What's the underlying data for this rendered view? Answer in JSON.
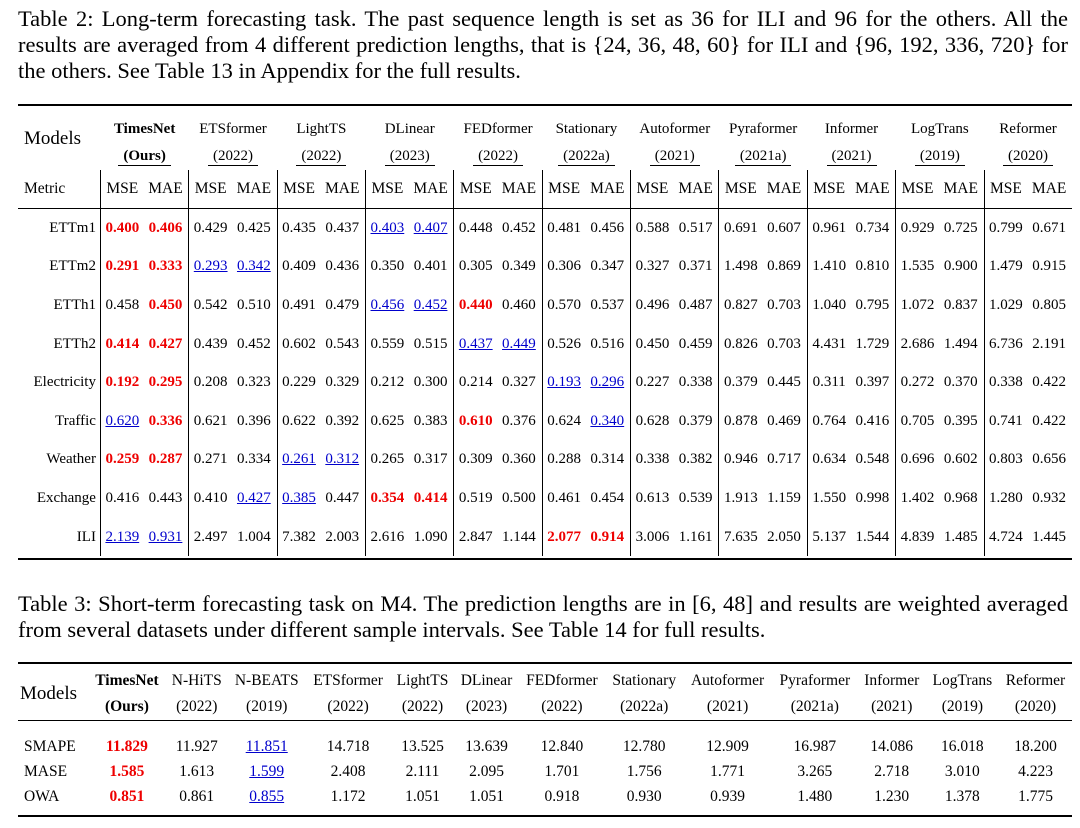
{
  "table2": {
    "caption": "Table 2: Long-term forecasting task. The past sequence length is set as 36 for ILI and 96 for the others. All the results are averaged from 4 different prediction lengths, that is {24, 36, 48, 60} for ILI and {96, 192, 336, 720} for the others. See Table 13 in Appendix for the full results.",
    "models_label": "Models",
    "metric_label": "Metric",
    "metric_pair": [
      "MSE",
      "MAE"
    ],
    "models": [
      {
        "name": "TimesNet",
        "year": "(Ours)"
      },
      {
        "name": "ETSformer",
        "year": "(2022)"
      },
      {
        "name": "LightTS",
        "year": "(2022)"
      },
      {
        "name": "DLinear",
        "year": "(2023)"
      },
      {
        "name": "FEDformer",
        "year": "(2022)"
      },
      {
        "name": "Stationary",
        "year": "(2022a)"
      },
      {
        "name": "Autoformer",
        "year": "(2021)"
      },
      {
        "name": "Pyraformer",
        "year": "(2021a)"
      },
      {
        "name": "Informer",
        "year": "(2021)"
      },
      {
        "name": "LogTrans",
        "year": "(2019)"
      },
      {
        "name": "Reformer",
        "year": "(2020)"
      }
    ],
    "rows": [
      {
        "dataset": "ETTm1",
        "values": [
          "0.400",
          "0.406",
          "0.429",
          "0.425",
          "0.435",
          "0.437",
          "0.403",
          "0.407",
          "0.448",
          "0.452",
          "0.481",
          "0.456",
          "0.588",
          "0.517",
          "0.691",
          "0.607",
          "0.961",
          "0.734",
          "0.929",
          "0.725",
          "0.799",
          "0.671"
        ],
        "best": [
          0,
          1
        ],
        "second": [
          6,
          7
        ]
      },
      {
        "dataset": "ETTm2",
        "values": [
          "0.291",
          "0.333",
          "0.293",
          "0.342",
          "0.409",
          "0.436",
          "0.350",
          "0.401",
          "0.305",
          "0.349",
          "0.306",
          "0.347",
          "0.327",
          "0.371",
          "1.498",
          "0.869",
          "1.410",
          "0.810",
          "1.535",
          "0.900",
          "1.479",
          "0.915"
        ],
        "best": [
          0,
          1
        ],
        "second": [
          2,
          3
        ]
      },
      {
        "dataset": "ETTh1",
        "values": [
          "0.458",
          "0.450",
          "0.542",
          "0.510",
          "0.491",
          "0.479",
          "0.456",
          "0.452",
          "0.440",
          "0.460",
          "0.570",
          "0.537",
          "0.496",
          "0.487",
          "0.827",
          "0.703",
          "1.040",
          "0.795",
          "1.072",
          "0.837",
          "1.029",
          "0.805"
        ],
        "best": [
          1,
          8
        ],
        "second": [
          6,
          7
        ]
      },
      {
        "dataset": "ETTh2",
        "values": [
          "0.414",
          "0.427",
          "0.439",
          "0.452",
          "0.602",
          "0.543",
          "0.559",
          "0.515",
          "0.437",
          "0.449",
          "0.526",
          "0.516",
          "0.450",
          "0.459",
          "0.826",
          "0.703",
          "4.431",
          "1.729",
          "2.686",
          "1.494",
          "6.736",
          "2.191"
        ],
        "best": [
          0,
          1
        ],
        "second": [
          8,
          9
        ]
      },
      {
        "dataset": "Electricity",
        "values": [
          "0.192",
          "0.295",
          "0.208",
          "0.323",
          "0.229",
          "0.329",
          "0.212",
          "0.300",
          "0.214",
          "0.327",
          "0.193",
          "0.296",
          "0.227",
          "0.338",
          "0.379",
          "0.445",
          "0.311",
          "0.397",
          "0.272",
          "0.370",
          "0.338",
          "0.422"
        ],
        "best": [
          0,
          1
        ],
        "second": [
          10,
          11
        ]
      },
      {
        "dataset": "Traffic",
        "values": [
          "0.620",
          "0.336",
          "0.621",
          "0.396",
          "0.622",
          "0.392",
          "0.625",
          "0.383",
          "0.610",
          "0.376",
          "0.624",
          "0.340",
          "0.628",
          "0.379",
          "0.878",
          "0.469",
          "0.764",
          "0.416",
          "0.705",
          "0.395",
          "0.741",
          "0.422"
        ],
        "best": [
          1,
          8
        ],
        "second": [
          0,
          11
        ]
      },
      {
        "dataset": "Weather",
        "values": [
          "0.259",
          "0.287",
          "0.271",
          "0.334",
          "0.261",
          "0.312",
          "0.265",
          "0.317",
          "0.309",
          "0.360",
          "0.288",
          "0.314",
          "0.338",
          "0.382",
          "0.946",
          "0.717",
          "0.634",
          "0.548",
          "0.696",
          "0.602",
          "0.803",
          "0.656"
        ],
        "best": [
          0,
          1
        ],
        "second": [
          4,
          5
        ]
      },
      {
        "dataset": "Exchange",
        "values": [
          "0.416",
          "0.443",
          "0.410",
          "0.427",
          "0.385",
          "0.447",
          "0.354",
          "0.414",
          "0.519",
          "0.500",
          "0.461",
          "0.454",
          "0.613",
          "0.539",
          "1.913",
          "1.159",
          "1.550",
          "0.998",
          "1.402",
          "0.968",
          "1.280",
          "0.932"
        ],
        "best": [
          6,
          7
        ],
        "second": [
          3,
          4
        ]
      },
      {
        "dataset": "ILI",
        "values": [
          "2.139",
          "0.931",
          "2.497",
          "1.004",
          "7.382",
          "2.003",
          "2.616",
          "1.090",
          "2.847",
          "1.144",
          "2.077",
          "0.914",
          "3.006",
          "1.161",
          "7.635",
          "2.050",
          "5.137",
          "1.544",
          "4.839",
          "1.485",
          "4.724",
          "1.445"
        ],
        "best": [
          10,
          11
        ],
        "second": [
          0,
          1
        ]
      }
    ]
  },
  "table3": {
    "caption": "Table 3: Short-term forecasting task on M4. The prediction lengths are in [6, 48] and results are weighted averaged from several datasets under different sample intervals. See Table 14 for full results.",
    "models_label": "Models",
    "models": [
      {
        "name": "TimesNet",
        "year": "(Ours)"
      },
      {
        "name": "N-HiTS",
        "year": "(2022)"
      },
      {
        "name": "N-BEATS",
        "year": "(2019)"
      },
      {
        "name": "ETSformer",
        "year": "(2022)"
      },
      {
        "name": "LightTS",
        "year": "(2022)"
      },
      {
        "name": "DLinear",
        "year": "(2023)"
      },
      {
        "name": "FEDformer",
        "year": "(2022)"
      },
      {
        "name": "Stationary",
        "year": "(2022a)"
      },
      {
        "name": "Autoformer",
        "year": "(2021)"
      },
      {
        "name": "Pyraformer",
        "year": "(2021a)"
      },
      {
        "name": "Informer",
        "year": "(2021)"
      },
      {
        "name": "LogTrans",
        "year": "(2019)"
      },
      {
        "name": "Reformer",
        "year": "(2020)"
      }
    ],
    "rows": [
      {
        "metric": "SMAPE",
        "values": [
          "11.829",
          "11.927",
          "11.851",
          "14.718",
          "13.525",
          "13.639",
          "12.840",
          "12.780",
          "12.909",
          "16.987",
          "14.086",
          "16.018",
          "18.200"
        ],
        "best": [
          0
        ],
        "second": [
          2
        ]
      },
      {
        "metric": "MASE",
        "values": [
          "1.585",
          "1.613",
          "1.599",
          "2.408",
          "2.111",
          "2.095",
          "1.701",
          "1.756",
          "1.771",
          "3.265",
          "2.718",
          "3.010",
          "4.223"
        ],
        "best": [
          0
        ],
        "second": [
          2
        ]
      },
      {
        "metric": "OWA",
        "values": [
          "0.851",
          "0.861",
          "0.855",
          "1.172",
          "1.051",
          "1.051",
          "0.918",
          "0.930",
          "0.939",
          "1.480",
          "1.230",
          "1.378",
          "1.775"
        ],
        "best": [
          0
        ],
        "second": [
          2
        ]
      }
    ]
  },
  "colors": {
    "best": "#e00000",
    "second": "#0000cc"
  }
}
